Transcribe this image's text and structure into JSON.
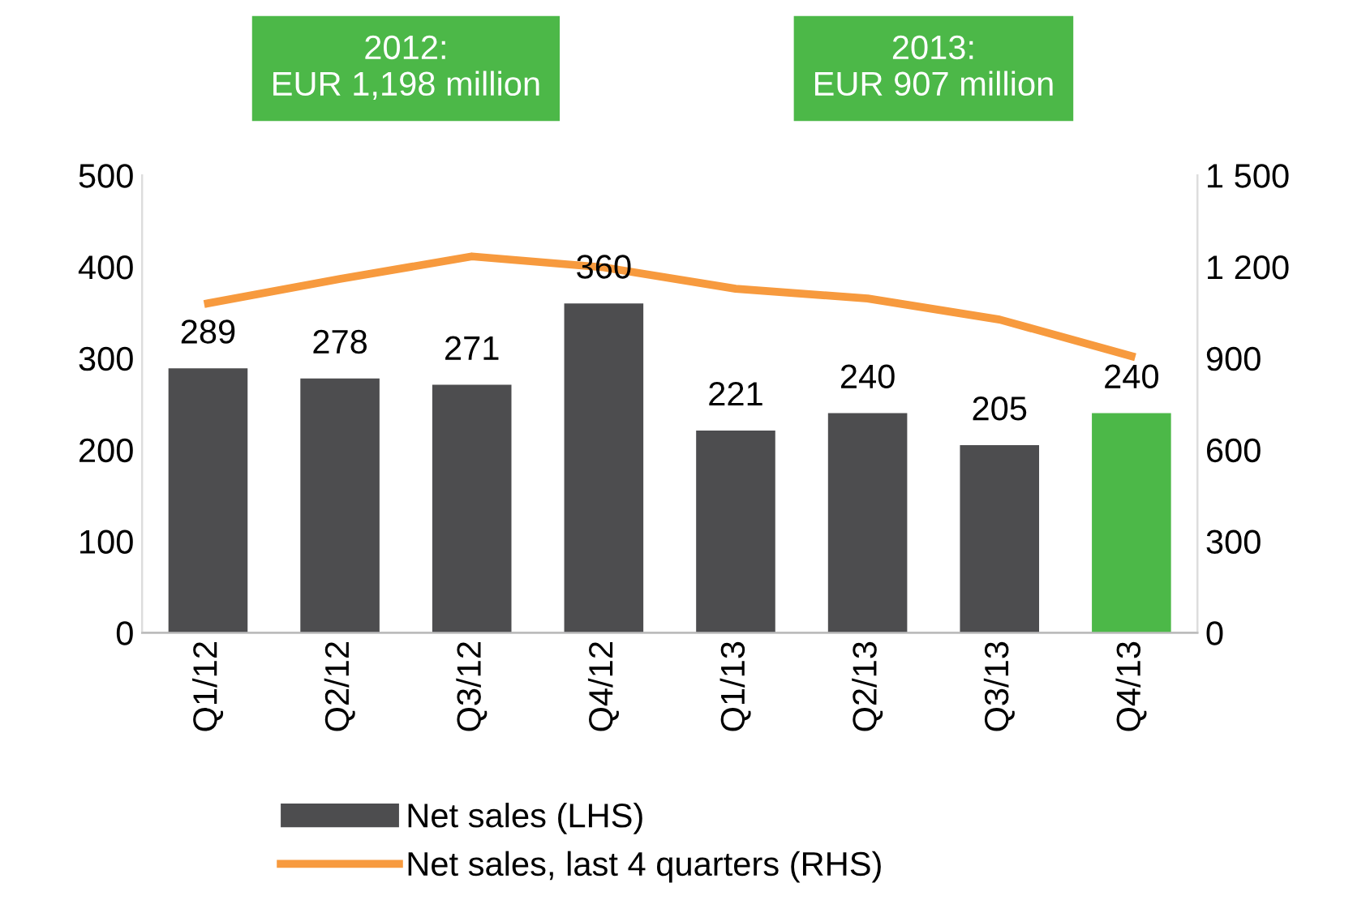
{
  "chart_data": {
    "type": "bar",
    "categories": [
      "Q1/12",
      "Q2/12",
      "Q3/12",
      "Q4/12",
      "Q1/13",
      "Q2/13",
      "Q3/13",
      "Q4/13"
    ],
    "series": [
      {
        "name": "Net sales (LHS)",
        "value_labels": [
          "289",
          "278",
          "271",
          "360",
          "221",
          "240",
          "205",
          "240"
        ],
        "colors": [
          "#4d4d4f",
          "#4d4d4f",
          "#4d4d4f",
          "#4d4d4f",
          "#4d4d4f",
          "#4d4d4f",
          "#4d4d4f",
          "#4cb848"
        ],
        "color": "#4d4d4f",
        "values": [
          289,
          278,
          271,
          360,
          221,
          240,
          205,
          240
        ]
      },
      {
        "name": "Net sales, last 4 quarters (RHS)",
        "type": "line",
        "axis": "y2",
        "color": "#f79a3e",
        "values": [
          1080,
          1160,
          1234,
          1198,
          1128,
          1096,
          1027,
          907
        ]
      }
    ],
    "ylim": [
      0,
      500
    ],
    "yticks": [
      0,
      100,
      200,
      300,
      400,
      500
    ],
    "y2lim": [
      0,
      1500
    ],
    "y2ticks": [
      0,
      300,
      600,
      900,
      {
        "value": 1200,
        "label": "1 200"
      },
      {
        "value": 1500,
        "label": "1 500"
      }
    ],
    "annotations": [
      "2012:\nEUR 1,198 million",
      "2013:\nEUR 907 million"
    ],
    "legend": "bottom",
    "grid": false,
    "marker": "none",
    "line_style": "solid"
  }
}
